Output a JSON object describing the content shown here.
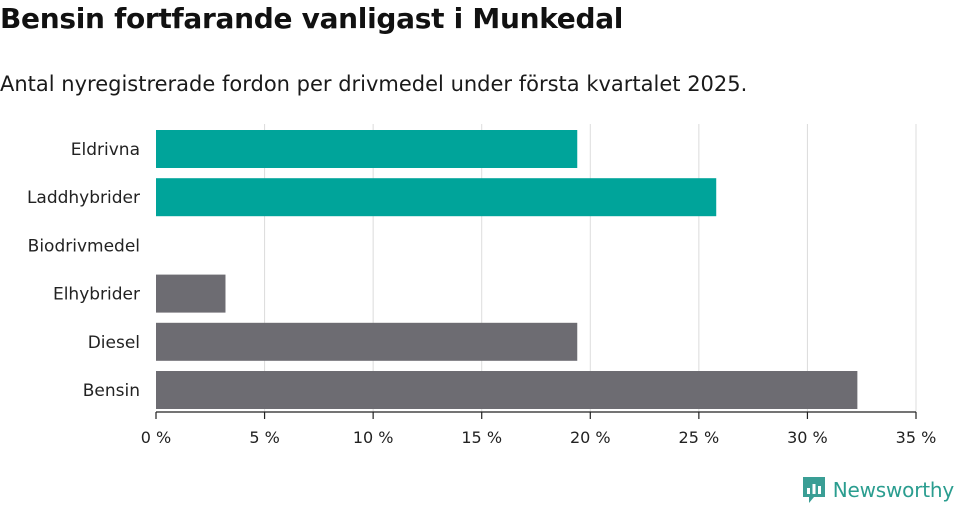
{
  "header": {
    "title": "Bensin fortfarande vanligast i Munkedal",
    "subtitle": "Antal nyregistrerade fordon per drivmedel under första kvartalet 2025."
  },
  "brand": {
    "name": "Newsworthy",
    "icon": "newsworthy-logo-icon",
    "color": "#3a9e95"
  },
  "chart_data": {
    "type": "bar",
    "orientation": "horizontal",
    "categories": [
      "Eldrivna",
      "Laddhybrider",
      "Biodrivmedel",
      "Elhybrider",
      "Diesel",
      "Bensin"
    ],
    "values": [
      19.4,
      25.8,
      0,
      3.2,
      19.4,
      32.3
    ],
    "bar_colors": [
      "#00a49a",
      "#00a49a",
      "#00a49a",
      "#6d6c72",
      "#6d6c72",
      "#6d6c72"
    ],
    "xlim": [
      0,
      35
    ],
    "xticks": [
      0,
      5,
      10,
      15,
      20,
      25,
      30,
      35
    ],
    "tick_labels": [
      "0 %",
      "5 %",
      "10 %",
      "15 %",
      "20 %",
      "25 %",
      "30 %",
      "35 %"
    ],
    "grid": true
  }
}
